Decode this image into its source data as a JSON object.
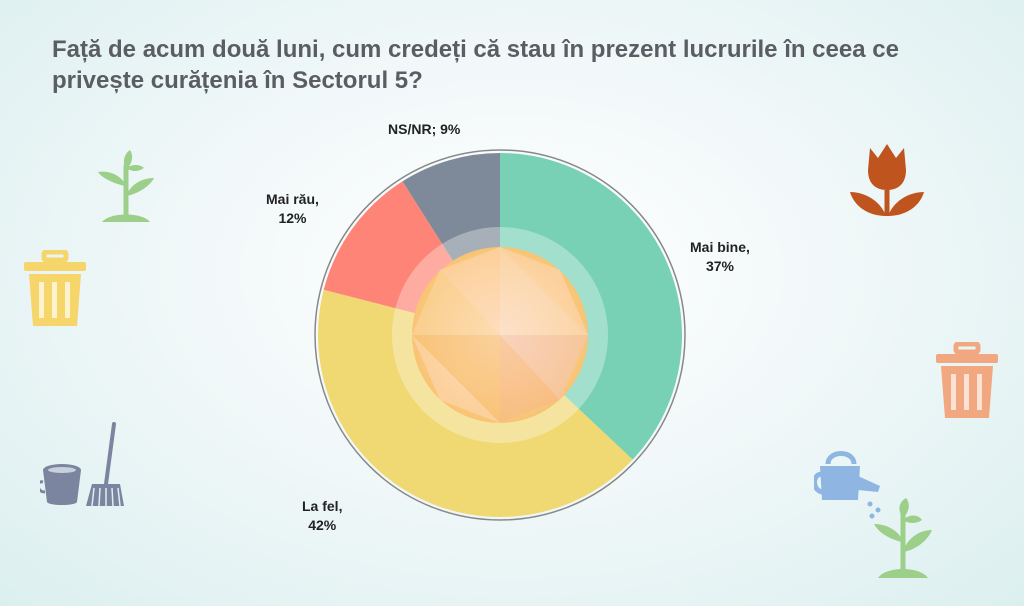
{
  "title": "Față de acum două luni, cum credeți că stau în prezent lucrurile în ceea ce privește curățenia în Sectorul 5?",
  "chart_data": {
    "type": "pie",
    "title": "Față de acum două luni, cum credeți că stau în prezent lucrurile în ceea ce privește curățenia în Sectorul 5?",
    "slices": [
      {
        "label": "Mai bine",
        "value": 37,
        "value_label": "37%",
        "color": "#78d0b5"
      },
      {
        "label": "La fel",
        "value": 42,
        "value_label": "42%",
        "color": "#f0d872"
      },
      {
        "label": "Mai rău",
        "value": 12,
        "value_label": "12%",
        "color": "#fe8477"
      },
      {
        "label": "NS/NR",
        "value": 9,
        "value_label": "9%",
        "color": "#7e8a99"
      }
    ],
    "start_angle_deg": 0,
    "direction": "clockwise",
    "donut": true
  },
  "icons": [
    "plant-icon",
    "trash-can-icon",
    "bucket-mop-icon",
    "tulip-icon",
    "watering-can-icon"
  ],
  "colors": {
    "title": "#5a5e63",
    "plant": "#9ccf8a",
    "trash_left": "#f6d56a",
    "trash_right": "#f1a77f",
    "tulip": "#c0541f",
    "bucket_mop": "#7b85a0",
    "watering_can": "#8fb6e2"
  }
}
